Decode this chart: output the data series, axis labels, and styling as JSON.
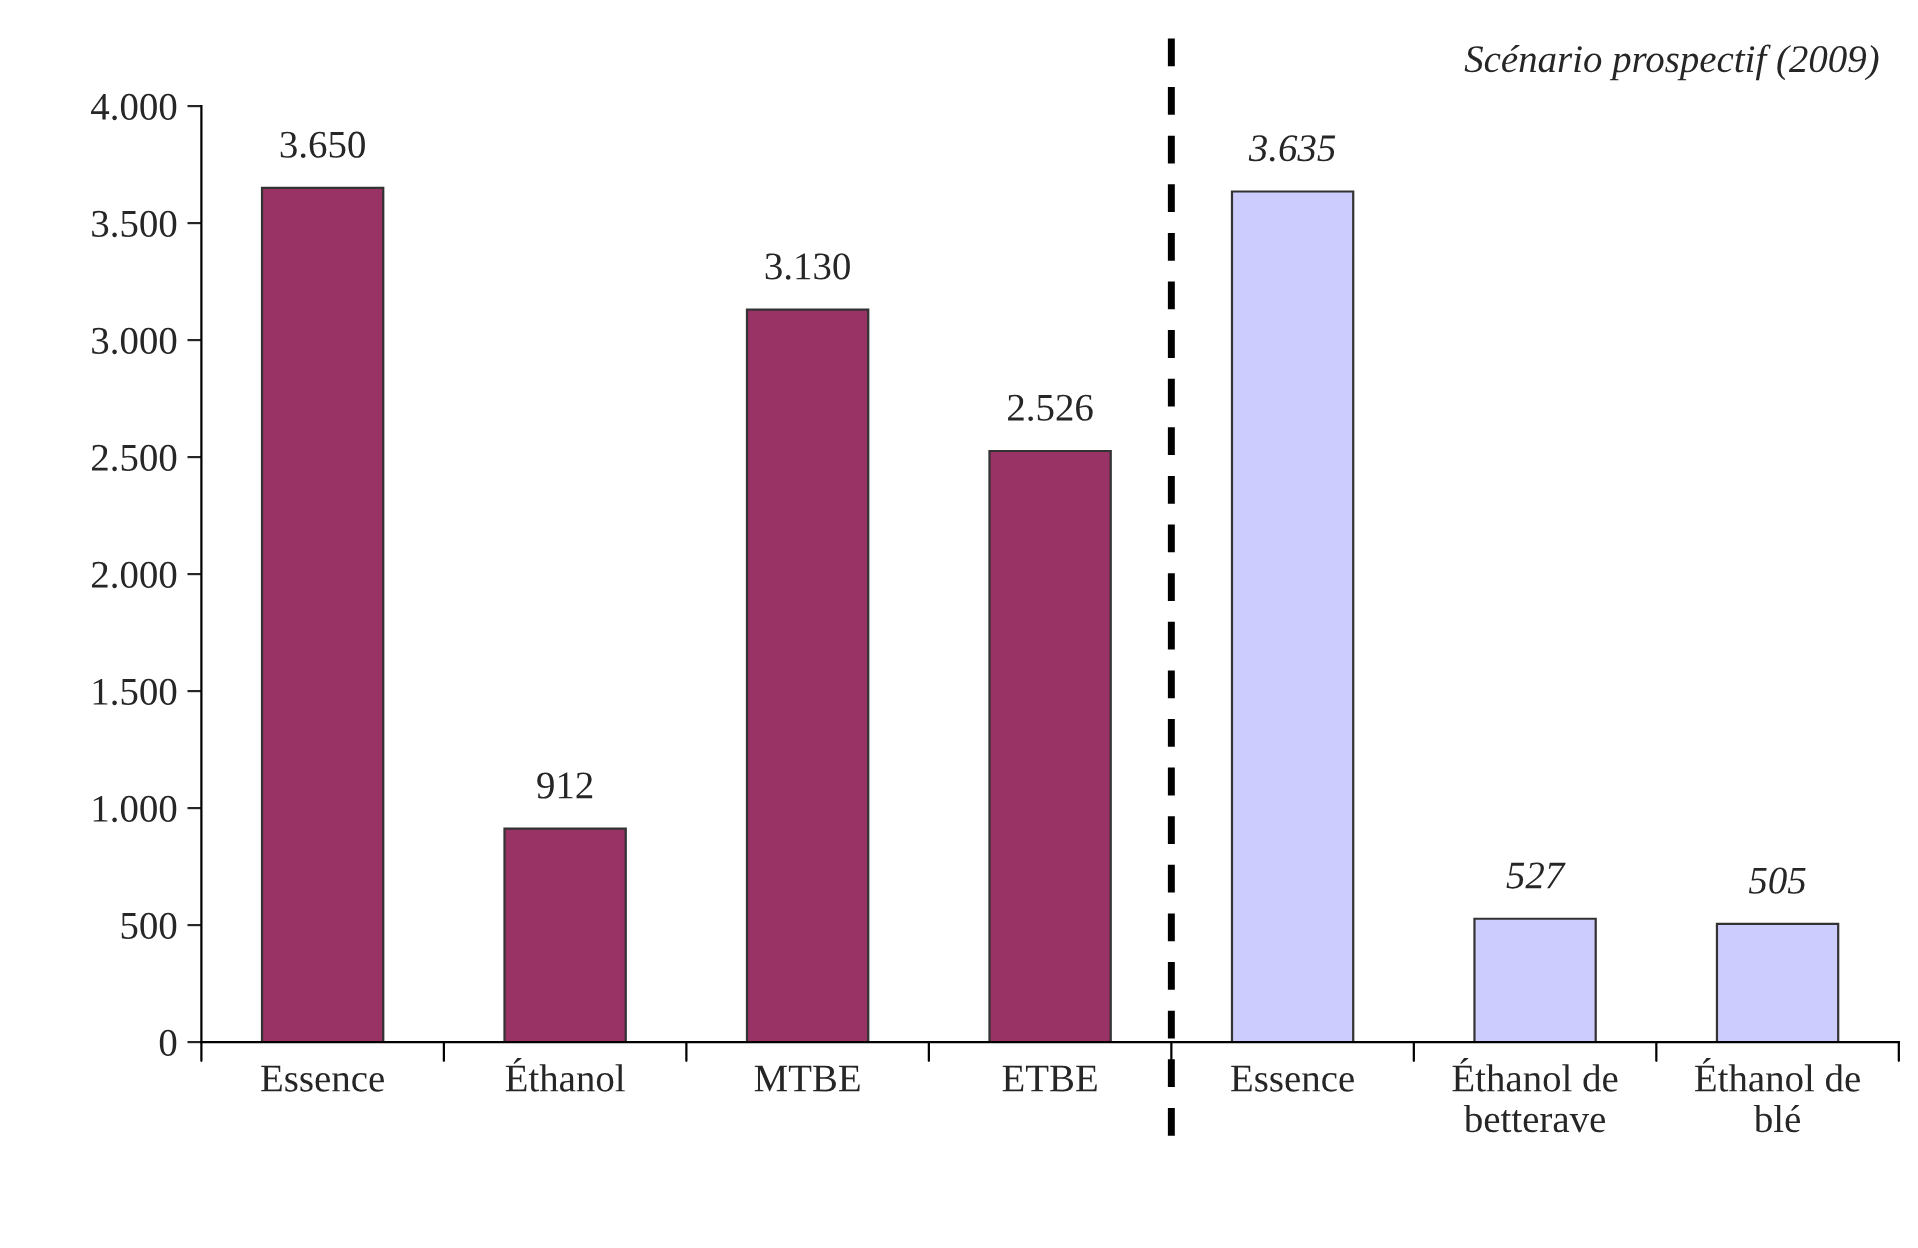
{
  "chart_data": {
    "type": "bar",
    "categories": [
      "Essence",
      "Éthanol",
      "MTBE",
      "ETBE",
      "Essence",
      "Éthanol de\nbetterave",
      "Éthanol de\nblé"
    ],
    "series": [
      {
        "color": "#993366",
        "values": [
          3650,
          912,
          3130,
          2526,
          null,
          null,
          null
        ],
        "value_labels": [
          "3.650",
          "912",
          "3.130",
          "2.526",
          null,
          null,
          null
        ]
      },
      {
        "color": "#ccccff",
        "values": [
          null,
          null,
          null,
          null,
          3635,
          527,
          505
        ],
        "value_labels": [
          null,
          null,
          null,
          null,
          "3.635",
          "527",
          "505"
        ]
      }
    ],
    "ylim": [
      0,
      4000
    ],
    "yticks": [
      0,
      500,
      {
        "value": 1000,
        "label": "1.000"
      },
      {
        "value": 1500,
        "label": "1.500"
      },
      {
        "value": 2000,
        "label": "2.000"
      },
      {
        "value": 2500,
        "label": "2.500"
      },
      {
        "value": 3000,
        "label": "3.000"
      },
      {
        "value": 3500,
        "label": "3.500"
      },
      {
        "value": 4000,
        "label": "4.000"
      }
    ],
    "annotations": [
      "Scénario prospectif (2009)"
    ],
    "grid": false,
    "legend": false
  }
}
